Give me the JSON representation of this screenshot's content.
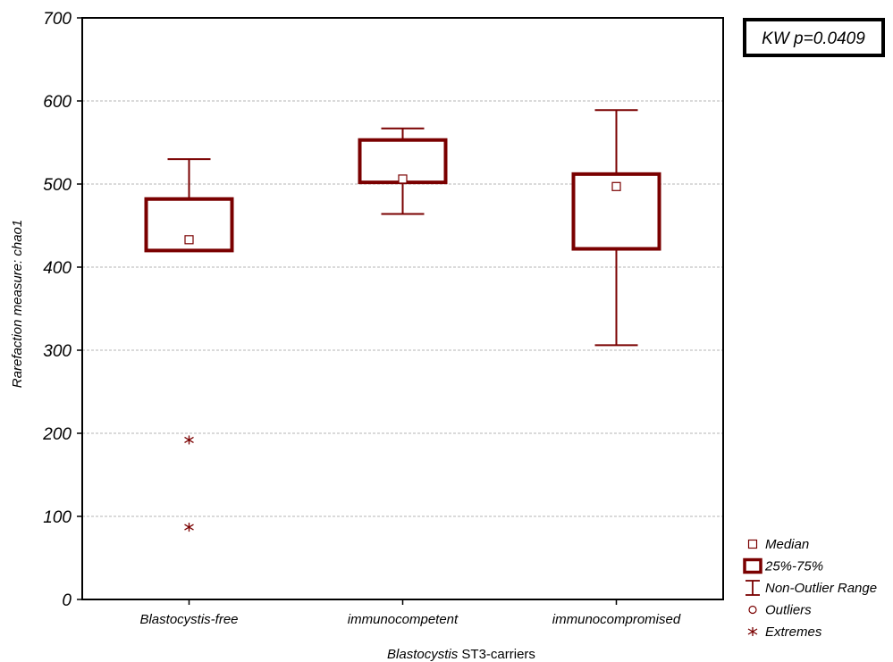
{
  "chart_data": {
    "type": "box",
    "title": "",
    "xlabel_italic": "Blastocystis",
    "xlabel_rest": " ST3-carriers",
    "ylabel": "Rarefaction measure: chao1",
    "ylim": [
      0,
      700
    ],
    "yticks": [
      0,
      100,
      200,
      300,
      400,
      500,
      600,
      700
    ],
    "grid": true,
    "annotation": "KW p=0.0409",
    "color": "#7a0000",
    "categories": [
      "Blastocystis-free",
      "immunocompetent",
      "immunocompromised"
    ],
    "boxes": [
      {
        "category": "Blastocystis-free",
        "median": 433,
        "q1": 420,
        "q3": 482,
        "whisker_low": 420,
        "whisker_high": 530,
        "outliers": [],
        "extremes": [
          192,
          87
        ]
      },
      {
        "category": "immunocompetent",
        "median": 506,
        "q1": 502,
        "q3": 553,
        "whisker_low": 464,
        "whisker_high": 567,
        "outliers": [],
        "extremes": []
      },
      {
        "category": "immunocompromised",
        "median": 497,
        "q1": 422,
        "q3": 512,
        "whisker_low": 306,
        "whisker_high": 589,
        "outliers": [],
        "extremes": []
      }
    ],
    "legend": {
      "position": "bottom-right",
      "entries": [
        {
          "symbol": "median-square",
          "label": "Median"
        },
        {
          "symbol": "box",
          "label": "25%-75%"
        },
        {
          "symbol": "whisker",
          "label": "Non-Outlier Range"
        },
        {
          "symbol": "circle",
          "label": "Outliers"
        },
        {
          "symbol": "asterisk",
          "label": "Extremes"
        }
      ]
    }
  }
}
